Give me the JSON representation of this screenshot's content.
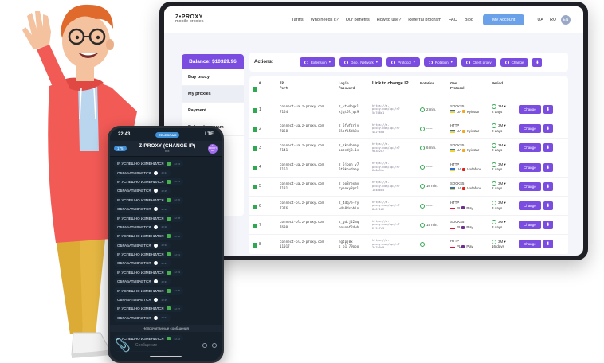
{
  "site": {
    "logo_main": "Z•PROXY",
    "logo_sub": "mobile proxies",
    "nav": [
      "Tariffs",
      "Who needs it?",
      "Our benefits",
      "How to use?",
      "Referral program",
      "FAQ",
      "Blog"
    ],
    "account_button": "My Account",
    "langs": [
      "UA",
      "RU"
    ],
    "user_initials": "EN"
  },
  "sidebar": {
    "balance": "Balance: $10329.96",
    "items": [
      "Buy proxy",
      "My proxies",
      "Payment",
      "Referral program"
    ]
  },
  "actions": {
    "label": "Actions:",
    "buttons": [
      "Extension",
      "Geo / Network",
      "Protocol",
      "Rotation",
      "Client proxy",
      "Change"
    ]
  },
  "table": {
    "headers": {
      "ip_line1": "IP",
      "ip_line2": "Port",
      "login_line1": "Login",
      "login_line2": "Password",
      "link": "Link to change IP",
      "rotation": "Rotation",
      "geo_line1": "Geo",
      "geo_line2": "Protocol",
      "period": "Period",
      "num": "#"
    },
    "rows": [
      {
        "num": "1",
        "host": "connect-ua.z-proxy.com",
        "port": "7154",
        "login": "z_vtw4bgkl",
        "pass": "kjqt5l_qs9",
        "link1": "https://z-",
        "link2": "proxy.com/api/r?",
        "link3": "5c7d8e1",
        "rot": "2 min.",
        "protocol": "SOCKS5",
        "country": "UA",
        "operator": "Kyivstar",
        "op_color": "#f5a623",
        "period1": "3M",
        "period2": "2 days"
      },
      {
        "num": "2",
        "host": "connect-ua.z-proxy.com",
        "port": "7058",
        "login": "z_5fwfzrjy",
        "pass": "8lsfl5dk8s",
        "link1": "https://z-",
        "link2": "proxy.com/api/r?",
        "link3": "4a2f6d0",
        "rot": "-----",
        "protocol": "HTTP",
        "country": "UA",
        "operator": "Kyivstar",
        "op_color": "#f5a623",
        "period1": "3M",
        "period2": "2 days"
      },
      {
        "num": "3",
        "host": "connect-ua.z-proxy.com",
        "port": "7141",
        "login": "z_zkn4bnay",
        "pass": "pozedj3.1s",
        "link1": "https://z-",
        "link2": "proxy.com/api/r?",
        "link3": "9b3e2c7",
        "rot": "6 min.",
        "protocol": "SOCKS5",
        "country": "UA",
        "operator": "Kyivstar",
        "op_color": "#f5a623",
        "period1": "3M",
        "period2": "2 days"
      },
      {
        "num": "4",
        "host": "connect-ua.z-proxy.com",
        "port": "7151",
        "login": "z_5jpoh_y7",
        "pass": "5t9kovdaey",
        "link1": "https://z-",
        "link2": "proxy.com/api/r?",
        "link3": "6d0a9fe",
        "rot": "-----",
        "protocol": "HTTP",
        "country": "UA",
        "operator": "Vodafone",
        "op_color": "#e2231a",
        "period1": "3M",
        "period2": "2 days"
      },
      {
        "num": "5",
        "host": "connect-ua.z-proxy.com",
        "port": "7131",
        "login": "z_bo8rexmv",
        "pass": "ryenky8prl",
        "link1": "https://z-",
        "link2": "proxy.com/api/r?",
        "link3": "1e4b6a5",
        "rot": "10 min.",
        "protocol": "SOCKS5",
        "country": "UA",
        "operator": "Vodafone",
        "op_color": "#e2231a",
        "period1": "3M",
        "period2": "2 days"
      },
      {
        "num": "6",
        "host": "connect-pl.z-proxy.com",
        "port": "7376",
        "login": "z_4dq7e-ry",
        "pass": "w4n8dspbln",
        "link1": "https://z-",
        "link2": "proxy.com/api/r?",
        "link3": "8c6f1b2",
        "rot": "-----",
        "protocol": "HTTP",
        "country": "PL",
        "operator": "Play",
        "op_color": "#6f2c91",
        "period1": "3M",
        "period2": "3 days"
      },
      {
        "num": "7",
        "host": "connect-pl.z-proxy.com",
        "port": "7680",
        "login": "z_gd.j42mq",
        "pass": "bnuoaf2dwh",
        "link1": "https://z-",
        "link2": "proxy.com/api/r?",
        "link3": "2f9c7d3",
        "rot": "15 min.",
        "protocol": "SOCKS5",
        "country": "PL",
        "operator": "Play",
        "op_color": "#6f2c91",
        "period1": "3M",
        "period2": "3 days"
      },
      {
        "num": "8",
        "host": "connect-pl.z-proxy.com",
        "port": "11017",
        "login": "ngtpj0x",
        "pass": "s_b1_79ooo",
        "link1": "https://z-",
        "link2": "proxy.com/api/r?",
        "link3": "3a7e0d9",
        "rot": "-----",
        "protocol": "HTTP",
        "country": "PL",
        "operator": "Play",
        "op_color": "#6f2c91",
        "period1": "3M",
        "period2": "16 days"
      }
    ],
    "change_label": "Change",
    "download_label": "⬇"
  },
  "phone": {
    "time": "22:43",
    "signal": "LTE",
    "tg_label": "TELEGRAM",
    "back": "175",
    "chat_title": "Z-PROXY (CHANGE IP)",
    "chat_sub": "bot",
    "avatar_text": "Z-PROXY bot",
    "messages_before": [
      {
        "text": "IP УСПЕШНО ИЗМЕНИЛСЯ",
        "type": "ok",
        "time": "22:24"
      },
      {
        "text": "ОБРАБАТЫВАЕТСЯ",
        "type": "wait",
        "time": "22:24"
      },
      {
        "text": "IP УСПЕШНО ИЗМЕНИЛСЯ",
        "type": "ok",
        "time": "22:25"
      },
      {
        "text": "ОБРАБАТЫВАЕТСЯ",
        "type": "wait",
        "time": "22:25"
      },
      {
        "text": "IP УСПЕШНО ИЗМЕНИЛСЯ",
        "type": "ok",
        "time": "22:26"
      },
      {
        "text": "ОБРАБАТЫВАЕТСЯ",
        "type": "wait",
        "time": "22:26"
      },
      {
        "text": "IP УСПЕШНО ИЗМЕНИЛСЯ",
        "type": "ok",
        "time": "22:28"
      },
      {
        "text": "ОБРАБАТЫВАЕТСЯ",
        "type": "wait",
        "time": "22:28"
      },
      {
        "text": "IP УСПЕШНО ИЗМЕНИЛСЯ",
        "type": "ok",
        "time": "22:30"
      },
      {
        "text": "ОБРАБАТЫВАЕТСЯ",
        "type": "wait",
        "time": "22:30"
      },
      {
        "text": "IP УСПЕШНО ИЗМЕНИЛСЯ",
        "type": "ok",
        "time": "22:31"
      },
      {
        "text": "ОБРАБАТЫВАЕТСЯ",
        "type": "wait",
        "time": "22:31"
      },
      {
        "text": "IP УСПЕШНО ИЗМЕНИЛСЯ",
        "type": "ok",
        "time": "22:33"
      },
      {
        "text": "ОБРАБАТЫВАЕТСЯ",
        "type": "wait",
        "time": "22:33"
      },
      {
        "text": "IP УСПЕШНО ИЗМЕНИЛСЯ",
        "type": "ok",
        "time": "22:35"
      },
      {
        "text": "ОБРАБАТЫВАЕТСЯ",
        "type": "wait",
        "time": "22:35"
      },
      {
        "text": "IP УСПЕШНО ИЗМЕНИЛСЯ",
        "type": "ok",
        "time": "22:37"
      },
      {
        "text": "ОБРАБАТЫВАЕТСЯ",
        "type": "wait",
        "time": "22:37"
      }
    ],
    "unread_label": "Непрочитанные сообщения",
    "messages_after": [
      {
        "text": "IP УСПЕШНО ИЗМЕНИЛСЯ",
        "type": "ok",
        "time": "22:42"
      },
      {
        "text": "ОБРАБАТЫВАЕТСЯ",
        "type": "wait",
        "time": "22:42"
      }
    ],
    "input_placeholder": "Сообщение"
  },
  "colors": {
    "accent": "#7a4de0",
    "header_button": "#6ba1e8",
    "ok_green": "#2fa84f",
    "phone_bg": "#17212b",
    "hoodie": "#f25a56",
    "shirt": "#b9d6ee",
    "pants": "#e5b742"
  }
}
